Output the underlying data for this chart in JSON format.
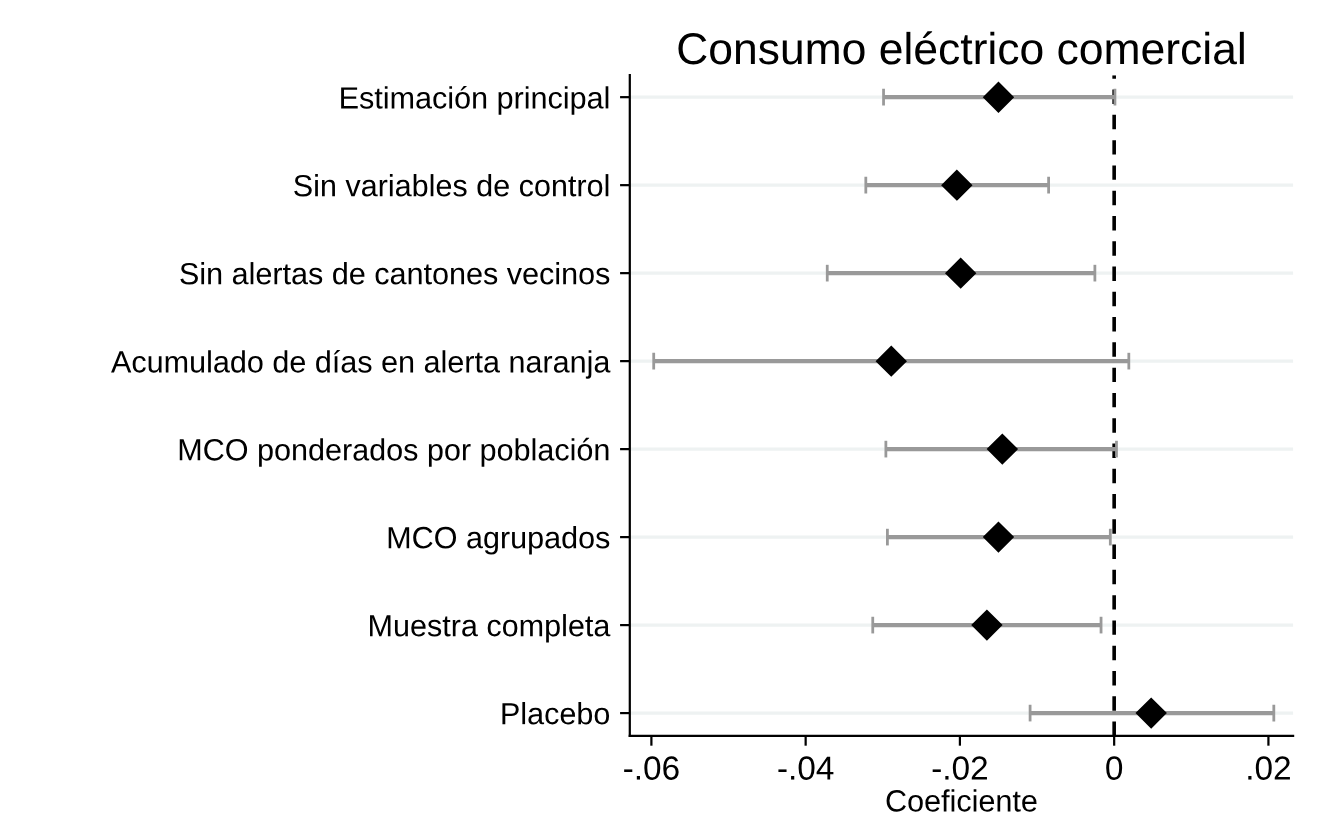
{
  "chart_data": {
    "type": "scatter",
    "orientation": "horizontal",
    "title": "Consumo eléctrico comercial",
    "xlabel": "Coeficiente",
    "categories": [
      "Estimación principal",
      "Sin variables de control",
      "Sin alertas de cantones vecinos",
      "Acumulado de días en alerta naranja",
      "MCO ponderados por población",
      "MCO agrupados",
      "Muestra completa",
      "Placebo"
    ],
    "color": "#000000",
    "values": [
      -0.015,
      -0.0204,
      -0.0199,
      -0.0289,
      -0.0145,
      -0.015,
      -0.0165,
      0.0048
    ],
    "errors": [
      [
        -0.0299,
        0.0001
      ],
      [
        -0.0322,
        -0.0085
      ],
      [
        -0.0372,
        -0.0025
      ],
      [
        -0.0597,
        0.0019
      ],
      [
        -0.0296,
        0.0003
      ],
      [
        -0.0294,
        -0.0005
      ],
      [
        -0.0313,
        -0.0017
      ],
      [
        -0.0109,
        0.0207
      ]
    ],
    "marker": "diamond",
    "xlim": [
      -0.0628,
      0.0232
    ],
    "xticks": [
      {
        "value": -0.06,
        "label": "-.06"
      },
      {
        "value": -0.04,
        "label": "-.04"
      },
      {
        "value": -0.02,
        "label": "-.02"
      },
      0,
      {
        "value": 0.02,
        "label": ".02"
      }
    ],
    "ref_lines": [
      {
        "axis": "x",
        "value": 0,
        "color": "#000000",
        "line_style": "dashed"
      }
    ],
    "grid": "y",
    "legend": false
  }
}
